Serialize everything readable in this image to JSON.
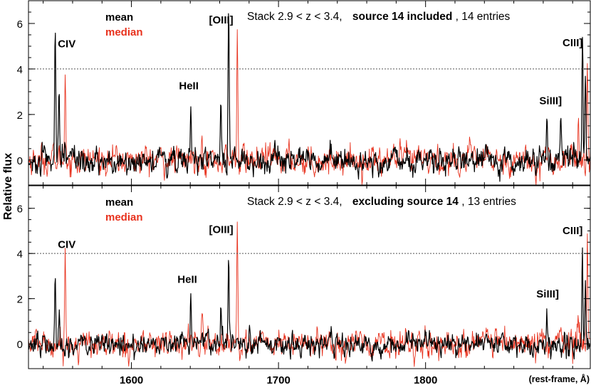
{
  "chart_data": {
    "type": "line",
    "ylabel": "Relative flux",
    "xlabel": "(rest-frame, Å)",
    "xlim": [
      1530,
      1912
    ],
    "xticks": [
      1600,
      1700,
      1800
    ],
    "x_tick_labels": [
      "1600",
      "1700",
      "1800"
    ],
    "colors": {
      "mean": "#000000",
      "median": "#e8321e",
      "reference_line": "#555555"
    },
    "panels": [
      {
        "title_plain_1": "Stack 2.9 < z < 3.4,",
        "title_bold": "source 14 included",
        "title_plain_2": ", 14 entries",
        "ylim": [
          -1.1,
          7.0
        ],
        "yticks": [
          0,
          2,
          4,
          6
        ],
        "y_tick_labels": [
          "0",
          "2",
          "4",
          "6"
        ],
        "reference_line_y": 4.0,
        "legend": [
          "mean",
          "median"
        ],
        "series": [
          {
            "name": "mean",
            "noise_sigma": 0.33,
            "peaks": [
              {
                "x": 1548.2,
                "y": 5.9
              },
              {
                "x": 1550.8,
                "y": 3.3
              },
              {
                "x": 1640.4,
                "y": 2.4
              },
              {
                "x": 1660.8,
                "y": 2.3
              },
              {
                "x": 1666.1,
                "y": 6.6
              },
              {
                "x": 1882.5,
                "y": 2.0
              },
              {
                "x": 1892.0,
                "y": 1.4
              },
              {
                "x": 1906.7,
                "y": 5.6
              },
              {
                "x": 1908.7,
                "y": 3.8
              }
            ]
          },
          {
            "name": "median",
            "noise_sigma": 0.38,
            "peaks": [
              {
                "x": 1555.0,
                "y": 4.0
              },
              {
                "x": 1648.0,
                "y": 1.8
              },
              {
                "x": 1672.0,
                "y": 5.5
              },
              {
                "x": 1910.0,
                "y": 4.5
              },
              {
                "x": 1904.0,
                "y": 1.7
              }
            ]
          }
        ],
        "annotations": [
          {
            "text": "CIV",
            "x": 1556,
            "y": 4.95
          },
          {
            "text": "HeII",
            "x": 1639,
            "y": 3.1
          },
          {
            "text": "[OIII]",
            "x": 1661,
            "y": 6.0
          },
          {
            "text": "SiIII]",
            "x": 1885,
            "y": 2.45
          },
          {
            "text": "CIII]",
            "x": 1900,
            "y": 5.0
          }
        ]
      },
      {
        "title_plain_1": "Stack 2.9 < z < 3.4,",
        "title_bold": "excluding source 14",
        "title_plain_2": ", 13 entries",
        "ylim": [
          -1.1,
          7.0
        ],
        "yticks": [
          0,
          2,
          4,
          6
        ],
        "y_tick_labels": [
          "0",
          "2",
          "4",
          "6"
        ],
        "reference_line_y": 4.0,
        "legend": [
          "mean",
          "median"
        ],
        "series": [
          {
            "name": "mean",
            "noise_sigma": 0.3,
            "peaks": [
              {
                "x": 1548.2,
                "y": 3.3
              },
              {
                "x": 1550.8,
                "y": 1.5
              },
              {
                "x": 1640.4,
                "y": 2.0
              },
              {
                "x": 1660.8,
                "y": 1.5
              },
              {
                "x": 1666.1,
                "y": 4.2
              },
              {
                "x": 1882.5,
                "y": 1.7
              },
              {
                "x": 1906.7,
                "y": 4.4
              },
              {
                "x": 1908.7,
                "y": 2.7
              }
            ]
          },
          {
            "name": "median",
            "noise_sigma": 0.36,
            "peaks": [
              {
                "x": 1555.0,
                "y": 4.0
              },
              {
                "x": 1648.0,
                "y": 1.3
              },
              {
                "x": 1672.0,
                "y": 5.5
              },
              {
                "x": 1910.0,
                "y": 4.5
              },
              {
                "x": 1904.0,
                "y": 1.6
              }
            ]
          }
        ],
        "annotations": [
          {
            "text": "CIV",
            "x": 1556,
            "y": 4.25
          },
          {
            "text": "HeII",
            "x": 1638,
            "y": 2.7
          },
          {
            "text": "[OIII]",
            "x": 1661,
            "y": 4.9
          },
          {
            "text": "SiIII]",
            "x": 1883,
            "y": 2.05
          },
          {
            "text": "CIII]",
            "x": 1900,
            "y": 4.85
          }
        ]
      }
    ]
  }
}
